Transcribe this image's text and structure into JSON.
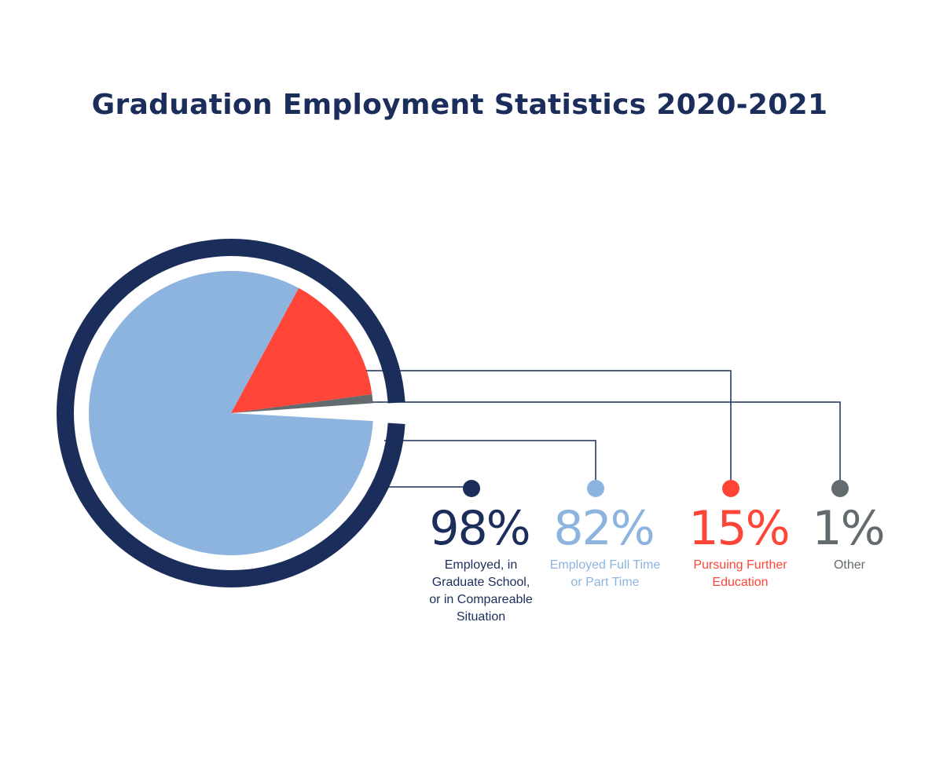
{
  "title": "Graduation Employment Statistics 2020-2021",
  "colors": {
    "navy": "#1b2e5b",
    "light_blue": "#8db4df",
    "red": "#ff4538",
    "gray": "#636b6f"
  },
  "chart_data": {
    "type": "pie",
    "title": "Graduation Employment Statistics 2020-2021",
    "outer_ring": {
      "label": "Employed, in Graduate School, or in Compareable Situation",
      "value": 98,
      "unit": "%"
    },
    "slices": [
      {
        "label": "Employed Full Time or Part Time",
        "value": 82,
        "color": "#8db4df"
      },
      {
        "label": "Pursuing Further Education",
        "value": 15,
        "color": "#ff4538"
      },
      {
        "label": "Other",
        "value": 1,
        "color": "#636b6f"
      }
    ]
  },
  "legend": [
    {
      "value": "98%",
      "label_lines": [
        "Employed, in",
        "Graduate School,",
        "or in Compareable",
        "Situation"
      ],
      "color": "#1b2e5b"
    },
    {
      "value": "82%",
      "label_lines": [
        "Employed Full Time",
        "or Part Time"
      ],
      "color": "#8db4df"
    },
    {
      "value": "15%",
      "label_lines": [
        "Pursuing Further",
        "Education"
      ],
      "color": "#ff4538"
    },
    {
      "value": "1%",
      "label_lines": [
        "Other"
      ],
      "color": "#636b6f"
    }
  ]
}
